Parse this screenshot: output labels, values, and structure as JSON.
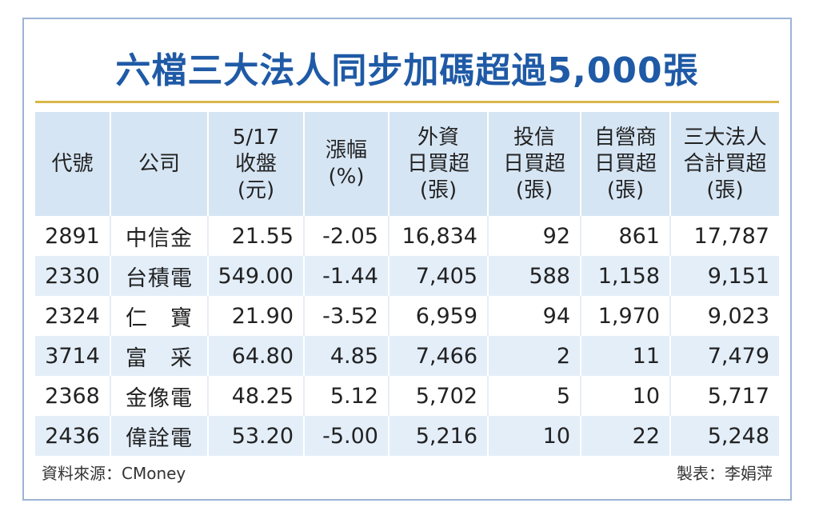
{
  "title": "六檔三大法人同步加碼超過5,000張",
  "headers": [
    [
      "代號"
    ],
    [
      "公司"
    ],
    [
      "5/17",
      "收盤",
      "(元)"
    ],
    [
      "漲幅",
      "(%)"
    ],
    [
      "外資",
      "日買超",
      "(張)"
    ],
    [
      "投信",
      "日買超",
      "(張)"
    ],
    [
      "自營商",
      "日買超",
      "(張)"
    ],
    [
      "三大法人",
      "合計買超",
      "(張)"
    ]
  ],
  "rows": [
    [
      "2891",
      "中信金",
      "21.55",
      "-2.05",
      "16,834",
      "92",
      "861",
      "17,787"
    ],
    [
      "2330",
      "台積電",
      "549.00",
      "-1.44",
      "7,405",
      "588",
      "1,158",
      "9,151"
    ],
    [
      "2324",
      "仁　寶",
      "21.90",
      "-3.52",
      "6,959",
      "94",
      "1,970",
      "9,023"
    ],
    [
      "3714",
      "富　采",
      "64.80",
      "4.85",
      "7,466",
      "2",
      "11",
      "7,479"
    ],
    [
      "2368",
      "金像電",
      "48.25",
      "5.12",
      "5,702",
      "5",
      "10",
      "5,717"
    ],
    [
      "2436",
      "偉詮電",
      "53.20",
      "-5.00",
      "5,216",
      "10",
      "22",
      "5,248"
    ]
  ],
  "footer": {
    "source": "資料來源：CMoney",
    "maker": "製表：李娟萍"
  },
  "colors": {
    "title": "#1f5aa6",
    "rule": "#d9b64a",
    "header_bg": "#d6e5f4",
    "row_alt_bg": "#e3eef9",
    "frame": "#9db3d6"
  }
}
